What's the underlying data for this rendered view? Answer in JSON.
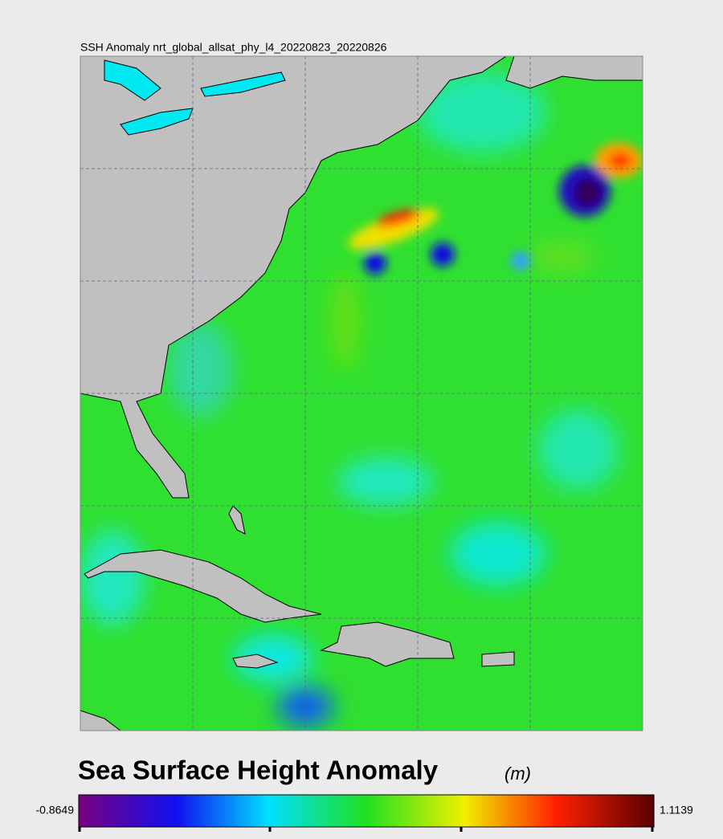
{
  "map": {
    "title": "SSH Anomaly nrt_global_allsat_phy_l4_20220823_20220826"
  },
  "colorbar": {
    "title": "Sea Surface Height Anomaly",
    "unit": "(m)",
    "min": -0.8649,
    "max": 1.1139
  }
}
